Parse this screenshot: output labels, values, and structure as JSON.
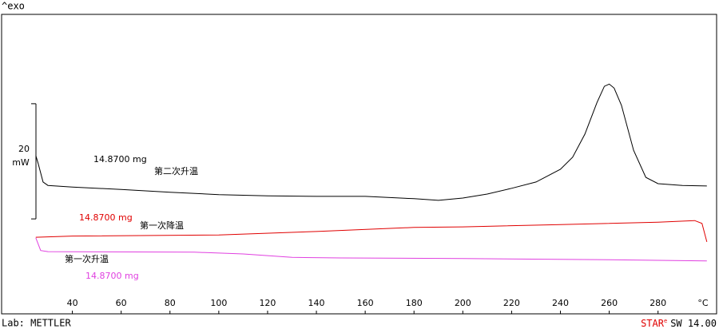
{
  "chart_data": {
    "type": "line",
    "y_label": "^exo",
    "x_unit": "°C",
    "xlim": [
      11,
      304
    ],
    "xticks": [
      40,
      60,
      80,
      100,
      120,
      140,
      160,
      180,
      200,
      220,
      240,
      260,
      280
    ],
    "ylim": [
      0,
      52
    ],
    "scale_bar": 20,
    "y_unit": "mW",
    "series": [
      {
        "name": "第二次升温",
        "sample": "14.8700 mg",
        "color": "#000000",
        "x": [
          25,
          26,
          28,
          30,
          40,
          60,
          80,
          100,
          120,
          140,
          160,
          180,
          190,
          200,
          210,
          220,
          230,
          240,
          245,
          250,
          255,
          258,
          260,
          262,
          265,
          270,
          275,
          280,
          290,
          300
        ],
        "values": [
          27.5,
          26.1,
          22.9,
          22.3,
          22.0,
          21.6,
          21.1,
          20.7,
          20.5,
          20.4,
          20.4,
          20.0,
          19.7,
          20.1,
          20.8,
          21.8,
          22.9,
          25.1,
          27.2,
          31.2,
          36.7,
          39.5,
          39.9,
          39.2,
          36.2,
          28.4,
          23.7,
          22.6,
          22.3,
          22.2
        ]
      },
      {
        "name": "第一次降温",
        "sample": "14.8700 mg",
        "color": "#e00000",
        "x": [
          25,
          40,
          100,
          140,
          180,
          200,
          240,
          280,
          295,
          298,
          300
        ],
        "values": [
          13.3,
          13.5,
          13.7,
          14.3,
          15.0,
          15.1,
          15.5,
          15.9,
          16.2,
          15.7,
          12.5
        ]
      },
      {
        "name": "第一次升温",
        "sample": "14.8700 mg",
        "color": "#e040e0",
        "x": [
          25,
          27,
          30,
          90,
          110,
          130,
          150,
          200,
          260,
          300
        ],
        "values": [
          13.2,
          11.0,
          10.8,
          10.7,
          10.4,
          9.8,
          9.7,
          9.6,
          9.4,
          9.2
        ]
      }
    ]
  },
  "footer": {
    "lab": "Lab: METTLER",
    "star": "STAR",
    "star_e": "e",
    "software": "SW 14.00"
  }
}
